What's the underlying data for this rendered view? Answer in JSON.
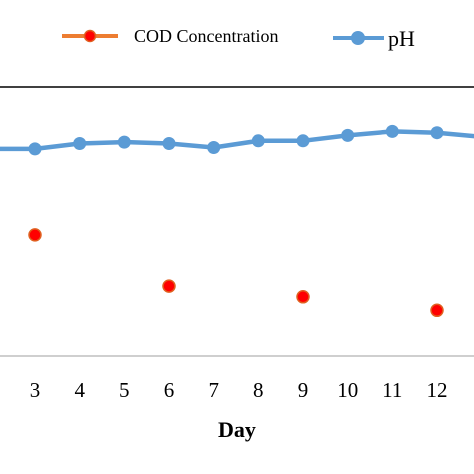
{
  "chart_data": {
    "type": "line",
    "x": [
      2,
      3,
      4,
      5,
      6,
      7,
      8,
      9,
      10,
      11,
      12,
      13
    ],
    "x_ticks": [
      "3",
      "4",
      "5",
      "6",
      "7",
      "8",
      "9",
      "10",
      "11",
      "12"
    ],
    "xlabel": "Day",
    "xlim": [
      2.2,
      12.8
    ],
    "grid": false,
    "legend_position": "top",
    "series": [
      {
        "name": "COD Concentration",
        "style": "markers",
        "color": "#ED7D31",
        "marker_color": "#FF0000",
        "points": [
          {
            "x": 3,
            "y": 0.45
          },
          {
            "x": 6,
            "y": 0.26
          },
          {
            "x": 9,
            "y": 0.22
          },
          {
            "x": 12,
            "y": 0.17
          }
        ]
      },
      {
        "name": "pH",
        "style": "line-markers",
        "color": "#5B9BD5",
        "x": [
          2,
          3,
          4,
          5,
          6,
          7,
          8,
          9,
          10,
          11,
          12,
          13
        ],
        "values": [
          0.77,
          0.77,
          0.79,
          0.795,
          0.79,
          0.775,
          0.8,
          0.8,
          0.82,
          0.835,
          0.83,
          0.815
        ]
      }
    ],
    "ylim": [
      0,
      1
    ]
  }
}
